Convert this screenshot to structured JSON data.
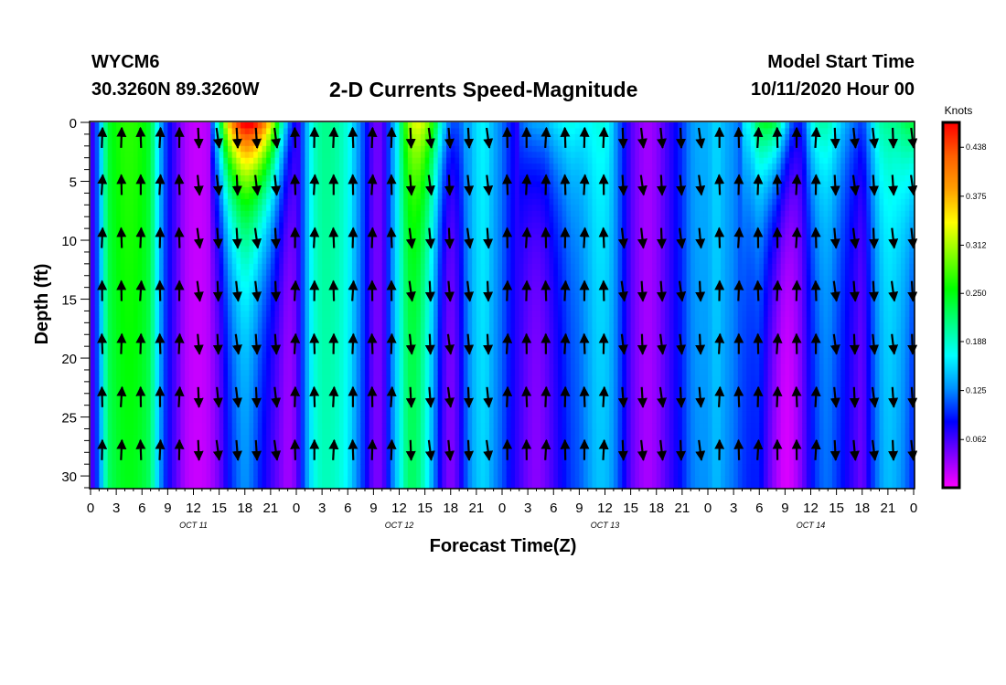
{
  "header": {
    "station": "WYCM6",
    "location": "30.3260N 89.3260W",
    "title": "2-D Currents Speed-Magnitude",
    "model_start_label": "Model Start Time",
    "model_start_value": "10/11/2020 Hour 00"
  },
  "chart_data": {
    "type": "heatmap",
    "title": "2-D Currents Speed-Magnitude",
    "xlabel": "Forecast Time(Z)",
    "ylabel": "Depth (ft)",
    "x_tick_labels": [
      "0",
      "3",
      "6",
      "9",
      "12",
      "15",
      "18",
      "21",
      "0",
      "3",
      "6",
      "9",
      "12",
      "15",
      "18",
      "21",
      "0",
      "3",
      "6",
      "9",
      "12",
      "15",
      "18",
      "21",
      "0",
      "3",
      "6",
      "9",
      "12",
      "15",
      "18",
      "21",
      "0"
    ],
    "day_labels": [
      "OCT 11",
      "OCT 12",
      "OCT 13",
      "OCT 14"
    ],
    "xlim_hours": [
      0,
      96
    ],
    "y_ticks": [
      0,
      5,
      10,
      15,
      20,
      25,
      30
    ],
    "ylim_depth_ft": [
      0,
      31
    ],
    "colorbar": {
      "label": "Knots",
      "ticks": [
        0.062,
        0.125,
        0.188,
        0.25,
        0.312,
        0.375,
        0.438
      ],
      "tick_labels": [
        "0.062",
        "0.125",
        "0.188",
        "0.250",
        "0.312",
        "0.375",
        "0.438"
      ],
      "range": [
        0,
        0.47
      ],
      "colormap": [
        "#ff00ff",
        "#8000ff",
        "#0000ff",
        "#0090ff",
        "#00ffff",
        "#00ff80",
        "#00ff00",
        "#80ff00",
        "#ffff00",
        "#ffa000",
        "#ff6000",
        "#ff0000"
      ]
    },
    "speed_profile_knots": {
      "hours": [
        0,
        1,
        2,
        3,
        4,
        5,
        6,
        7,
        8,
        9,
        10,
        11,
        12,
        13,
        14,
        15,
        16,
        17,
        18,
        19,
        20,
        21,
        22,
        23,
        24,
        25,
        26,
        27,
        28,
        29,
        30,
        31,
        32,
        33,
        34,
        35,
        36,
        37,
        38,
        39,
        40,
        41,
        42,
        43,
        44,
        45,
        46,
        47,
        48,
        49,
        50,
        51,
        52,
        53,
        54,
        55,
        56,
        57,
        58,
        59,
        60,
        61,
        62,
        63,
        64,
        65,
        66,
        67,
        68,
        69,
        70,
        71,
        72,
        73,
        74,
        75,
        76,
        77,
        78,
        79,
        80,
        81,
        82,
        83,
        84,
        85,
        86,
        87,
        88,
        89,
        90,
        91,
        92,
        93,
        94,
        95,
        96
      ],
      "values": [
        0.05,
        0.13,
        0.24,
        0.26,
        0.27,
        0.27,
        0.26,
        0.24,
        0.15,
        0.09,
        0.06,
        0.03,
        0.02,
        0.02,
        0.03,
        0.05,
        0.09,
        0.12,
        0.14,
        0.12,
        0.09,
        0.07,
        0.05,
        0.03,
        0.05,
        0.13,
        0.19,
        0.21,
        0.21,
        0.2,
        0.18,
        0.14,
        0.1,
        0.05,
        0.05,
        0.12,
        0.18,
        0.24,
        0.24,
        0.2,
        0.14,
        0.07,
        0.04,
        0.07,
        0.13,
        0.16,
        0.17,
        0.14,
        0.12,
        0.09,
        0.07,
        0.05,
        0.04,
        0.05,
        0.07,
        0.09,
        0.11,
        0.12,
        0.14,
        0.16,
        0.16,
        0.14,
        0.1,
        0.06,
        0.04,
        0.03,
        0.04,
        0.06,
        0.08,
        0.1,
        0.13,
        0.14,
        0.14,
        0.16,
        0.14,
        0.13,
        0.11,
        0.1,
        0.1,
        0.06,
        0.03,
        0.01,
        0.02,
        0.05,
        0.09,
        0.12,
        0.13,
        0.11,
        0.09,
        0.07,
        0.05,
        0.1,
        0.14,
        0.16,
        0.15,
        0.13,
        0.1
      ]
    },
    "surface_boost_knots": {
      "hours": [
        14,
        15,
        16,
        17,
        18,
        19,
        20,
        21,
        22,
        23,
        24,
        36,
        37,
        38,
        39,
        40,
        41,
        42,
        43,
        44,
        50,
        51,
        52,
        53,
        54,
        55,
        56,
        57,
        58,
        59,
        60,
        61,
        76,
        77,
        78,
        79,
        80,
        81,
        82,
        83,
        84,
        85,
        86,
        87,
        88,
        89,
        90,
        91,
        92,
        93,
        94,
        95,
        96
      ],
      "values": [
        0.06,
        0.16,
        0.27,
        0.32,
        0.35,
        0.36,
        0.34,
        0.28,
        0.18,
        0.1,
        0.02,
        0.02,
        0.06,
        0.1,
        0.12,
        0.12,
        0.1,
        0.07,
        0.04,
        0.02,
        0.04,
        0.08,
        0.1,
        0.09,
        0.09,
        0.08,
        0.07,
        0.05,
        0.03,
        0.02,
        0.02,
        0.01,
        0.05,
        0.08,
        0.14,
        0.19,
        0.2,
        0.15,
        0.08,
        0.04,
        0.08,
        0.08,
        0.07,
        0.06,
        0.05,
        0.05,
        0.05,
        0.05,
        0.06,
        0.05,
        0.06,
        0.1,
        0.14
      ]
    }
  }
}
